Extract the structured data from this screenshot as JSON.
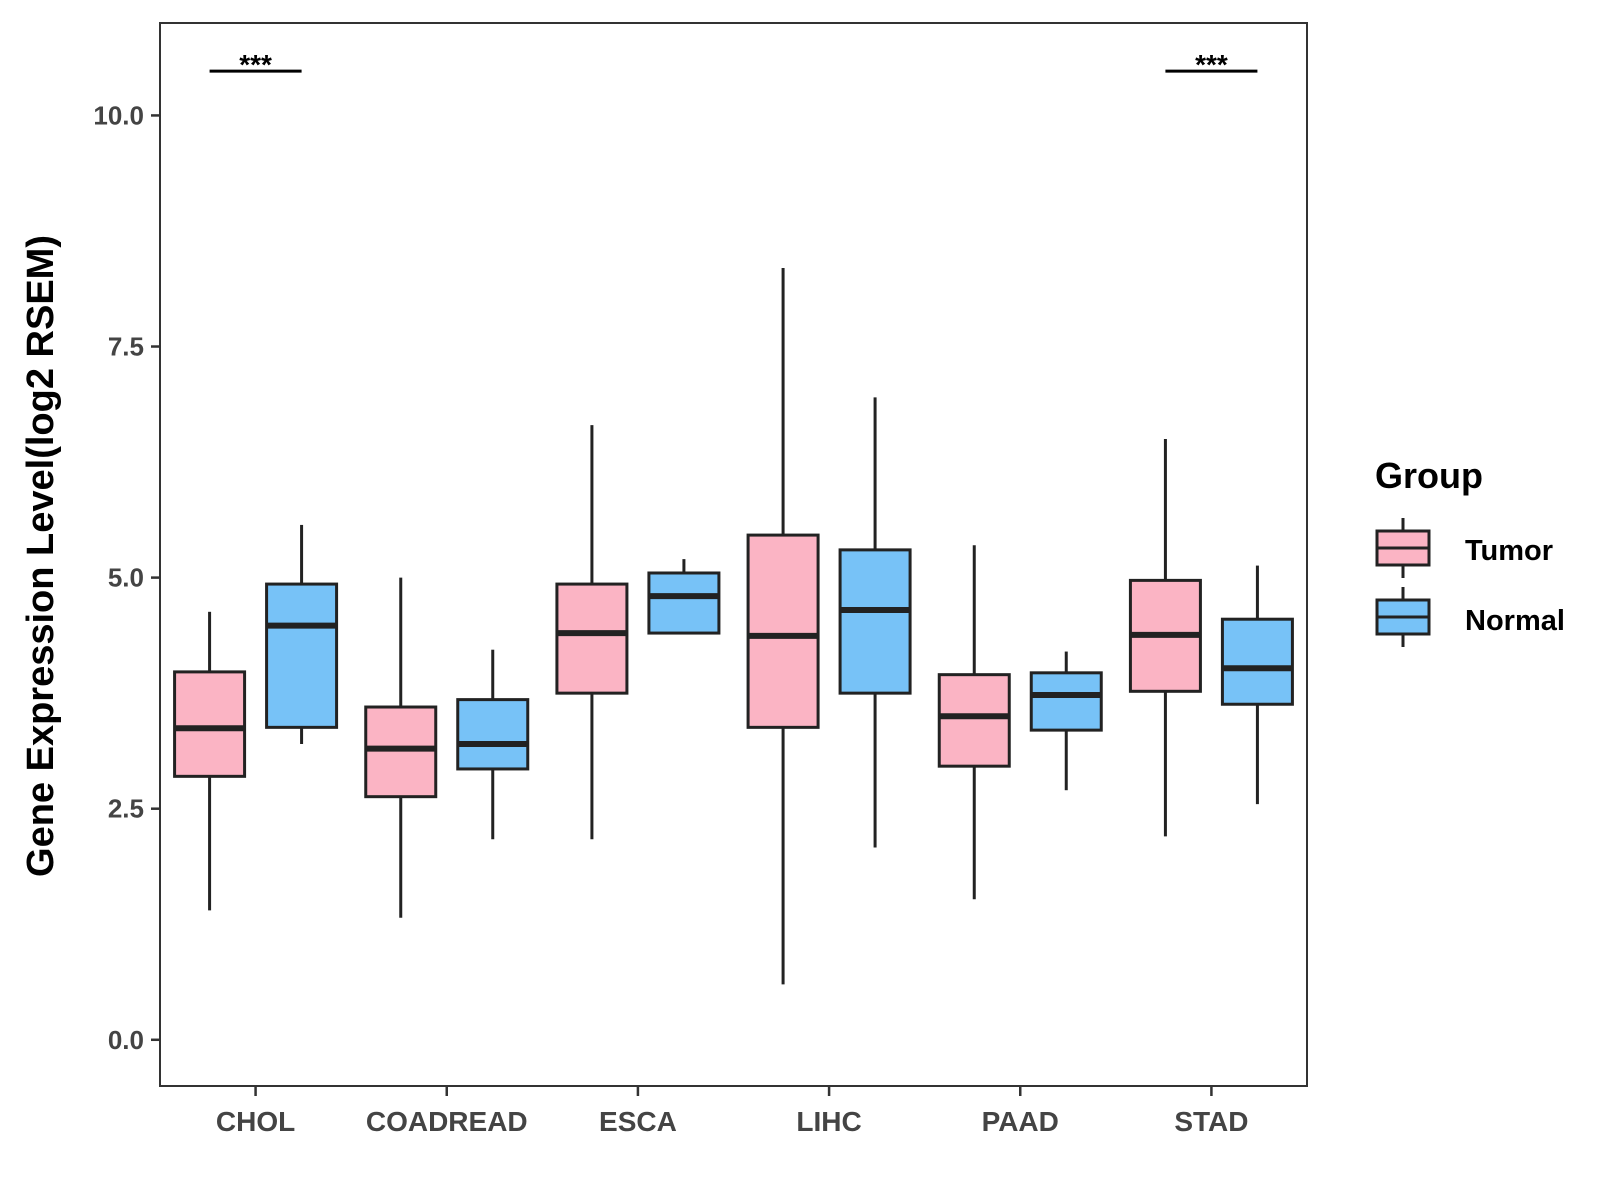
{
  "chart_data": {
    "type": "boxplot",
    "title": "",
    "xlabel": "",
    "ylabel": "Gene Expression Level(log2 RSEM)",
    "ylim": [
      -0.5,
      11.0
    ],
    "yticks": [
      0.0,
      2.5,
      5.0,
      7.5,
      10.0
    ],
    "ytick_labels": [
      "0.0",
      "2.5",
      "5.0",
      "7.5",
      "10.0"
    ],
    "categories": [
      "CHOL",
      "COADREAD",
      "ESCA",
      "LIHC",
      "PAAD",
      "STAD"
    ],
    "legend": {
      "title": "Group",
      "position": "right",
      "entries": [
        "Tumor",
        "Normal"
      ]
    },
    "series": [
      {
        "name": "Tumor",
        "color": "#FBB4C4",
        "boxes": [
          {
            "min": 1.4,
            "q1": 2.85,
            "median": 3.37,
            "q3": 3.98,
            "max": 4.63
          },
          {
            "min": 1.32,
            "q1": 2.63,
            "median": 3.15,
            "q3": 3.6,
            "max": 5.0
          },
          {
            "min": 2.17,
            "q1": 3.75,
            "median": 4.4,
            "q3": 4.93,
            "max": 6.65
          },
          {
            "min": 0.6,
            "q1": 3.38,
            "median": 4.37,
            "q3": 5.46,
            "max": 8.35
          },
          {
            "min": 1.52,
            "q1": 2.96,
            "median": 3.5,
            "q3": 3.95,
            "max": 5.35
          },
          {
            "min": 2.2,
            "q1": 3.77,
            "median": 4.38,
            "q3": 4.97,
            "max": 6.5
          }
        ]
      },
      {
        "name": "Normal",
        "color": "#77C2F7",
        "boxes": [
          {
            "min": 3.2,
            "q1": 3.38,
            "median": 4.48,
            "q3": 4.93,
            "max": 5.57
          },
          {
            "min": 2.17,
            "q1": 2.93,
            "median": 3.2,
            "q3": 3.68,
            "max": 4.22
          },
          {
            "min": 4.4,
            "q1": 4.4,
            "median": 4.8,
            "q3": 5.05,
            "max": 5.2
          },
          {
            "min": 2.08,
            "q1": 3.75,
            "median": 4.65,
            "q3": 5.3,
            "max": 6.95
          },
          {
            "min": 2.7,
            "q1": 3.35,
            "median": 3.73,
            "q3": 3.97,
            "max": 4.2
          },
          {
            "min": 2.55,
            "q1": 3.63,
            "median": 4.02,
            "q3": 4.55,
            "max": 5.13
          }
        ]
      }
    ],
    "annotations": [
      {
        "category": "CHOL",
        "text": "***",
        "y": 10.48
      },
      {
        "category": "STAD",
        "text": "***",
        "y": 10.48
      }
    ]
  }
}
